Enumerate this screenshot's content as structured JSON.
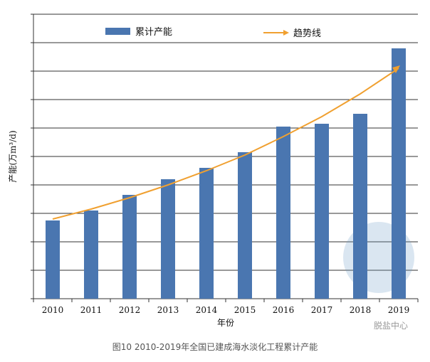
{
  "chart_data": {
    "type": "bar",
    "title": "",
    "xlabel": "年份",
    "ylabel": "产能(万m³/d)",
    "categories": [
      "2010",
      "2011",
      "2012",
      "2013",
      "2014",
      "2015",
      "2016",
      "2017",
      "2018",
      "2019"
    ],
    "series": [
      {
        "name": "累计产能",
        "values": [
          2.75,
          3.1,
          3.65,
          4.2,
          4.6,
          5.15,
          6.05,
          6.15,
          6.5,
          8.8
        ],
        "color": "#4a76b0"
      }
    ],
    "trend": {
      "name": "趋势线",
      "values": [
        2.8,
        3.15,
        3.55,
        4.0,
        4.5,
        5.05,
        5.7,
        6.4,
        7.2,
        8.1
      ],
      "color": "#f0a030"
    },
    "ylim": [
      0,
      10
    ],
    "grid": true,
    "legend": "top"
  },
  "caption": "图10 2010-2019年全国已建成海水淡化工程累计产能",
  "watermark": "脱盐中心"
}
